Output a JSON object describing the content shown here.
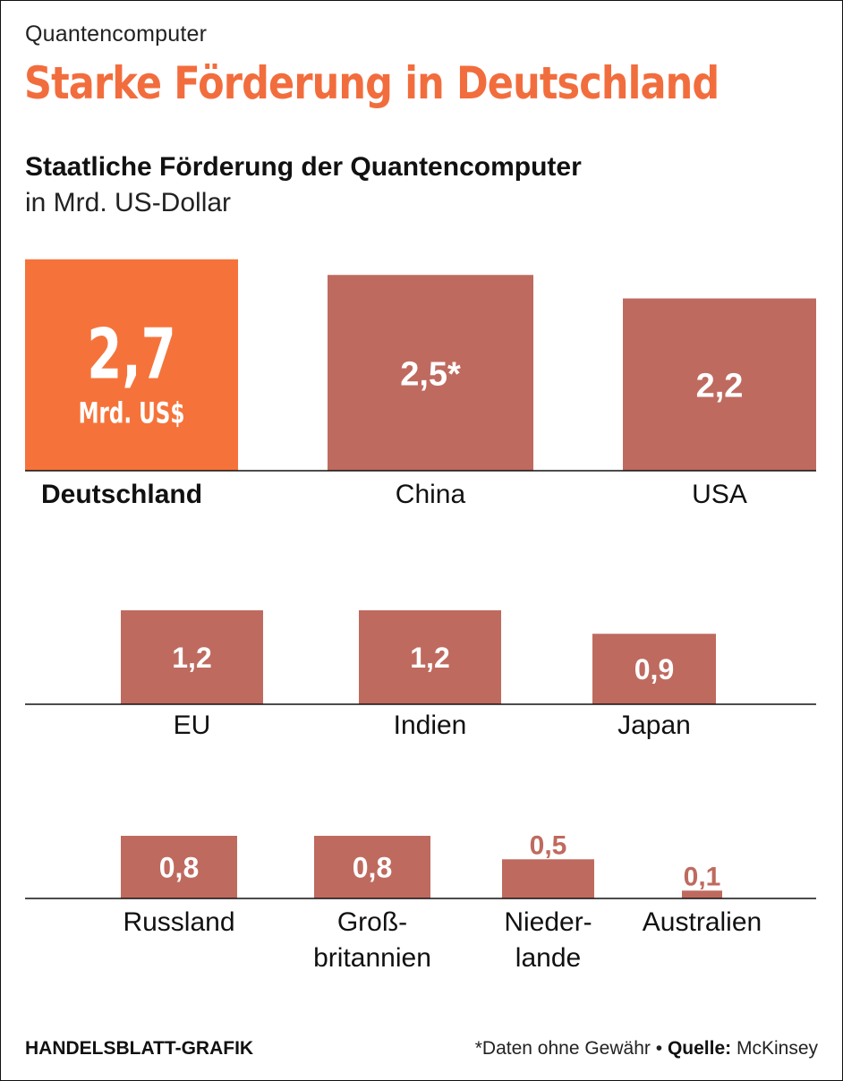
{
  "kicker": "Quantencomputer",
  "headline": "Starke Förderung in Deutschland",
  "subtitle": "Staatliche Förderung der Quantencomputer",
  "unit": "in Mrd. US-Dollar",
  "footer": {
    "credit": "HANDELSBLATT-GRAFIK",
    "note": "*Daten ohne Gewähr",
    "bullet": "•",
    "source_label": "Quelle:",
    "source": "McKinsey"
  },
  "colors": {
    "highlight": "#f5733a",
    "bar": "#bf6a5f",
    "headline": "#f26d3d"
  },
  "chart_data": {
    "type": "bar",
    "title": "Staatliche Förderung der Quantencomputer",
    "ylabel": "in Mrd. US-Dollar",
    "rows": [
      {
        "items": [
          {
            "category": "Deutschland",
            "value": 2.7,
            "label": "2,7",
            "unit_label": "Mrd. US$",
            "highlight": true
          },
          {
            "category": "China",
            "value": 2.5,
            "label": "2,5*"
          },
          {
            "category": "USA",
            "value": 2.2,
            "label": "2,2"
          }
        ]
      },
      {
        "items": [
          {
            "category": "EU",
            "value": 1.2,
            "label": "1,2"
          },
          {
            "category": "Indien",
            "value": 1.2,
            "label": "1,2"
          },
          {
            "category": "Japan",
            "value": 0.9,
            "label": "0,9"
          }
        ]
      },
      {
        "items": [
          {
            "category": "Russland",
            "value": 0.8,
            "label": "0,8"
          },
          {
            "category": "Groß-\nbritannien",
            "value": 0.8,
            "label": "0,8"
          },
          {
            "category": "Nieder-\nlande",
            "value": 0.5,
            "label": "0,5"
          },
          {
            "category": "Australien",
            "value": 0.1,
            "label": "0,1"
          }
        ]
      }
    ]
  }
}
